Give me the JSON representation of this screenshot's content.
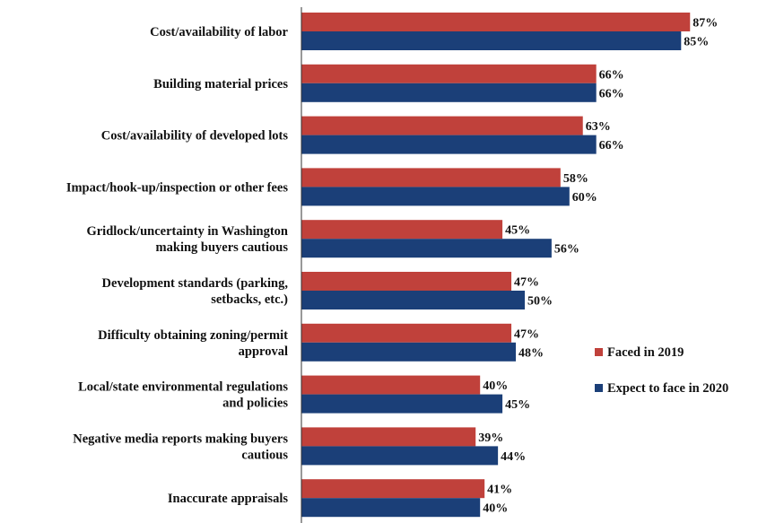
{
  "chart_data": {
    "type": "bar",
    "orientation": "horizontal",
    "categories": [
      [
        "Cost/availability of labor"
      ],
      [
        "Building material prices"
      ],
      [
        "Cost/availability of developed lots"
      ],
      [
        "Impact/hook-up/inspection or other fees"
      ],
      [
        "Gridlock/uncertainty in Washington",
        "making buyers cautious"
      ],
      [
        "Development standards (parking,",
        "setbacks, etc.)"
      ],
      [
        "Difficulty obtaining zoning/permit",
        "approval"
      ],
      [
        "Local/state environmental regulations",
        "and policies"
      ],
      [
        "Negative media reports making buyers",
        "cautious"
      ],
      [
        "Inaccurate appraisals"
      ]
    ],
    "series": [
      {
        "name": "Faced in 2019",
        "color": "#c0413b",
        "values": [
          87,
          66,
          63,
          58,
          45,
          47,
          47,
          40,
          39,
          41
        ],
        "labels": [
          "87%",
          "66%",
          "63%",
          "58%",
          "45%",
          "47%",
          "47%",
          "40%",
          "39%",
          "41%"
        ]
      },
      {
        "name": "Expect to face in 2020",
        "color": "#1b3f78",
        "values": [
          85,
          66,
          66,
          60,
          56,
          50,
          48,
          45,
          44,
          40
        ],
        "labels": [
          "85%",
          "66%",
          "66%",
          "60%",
          "56%",
          "50%",
          "48%",
          "45%",
          "44%",
          "40%"
        ]
      }
    ],
    "xlim": [
      0,
      100
    ],
    "value_suffix": "%",
    "grid": false,
    "legend_position": "right"
  }
}
